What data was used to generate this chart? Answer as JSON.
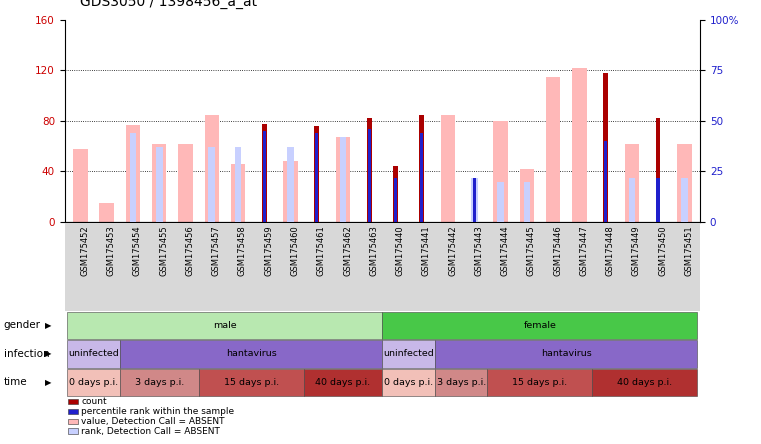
{
  "title": "GDS3050 / 1398456_a_at",
  "samples": [
    "GSM175452",
    "GSM175453",
    "GSM175454",
    "GSM175455",
    "GSM175456",
    "GSM175457",
    "GSM175458",
    "GSM175459",
    "GSM175460",
    "GSM175461",
    "GSM175462",
    "GSM175463",
    "GSM175440",
    "GSM175441",
    "GSM175442",
    "GSM175443",
    "GSM175444",
    "GSM175445",
    "GSM175446",
    "GSM175447",
    "GSM175448",
    "GSM175449",
    "GSM175450",
    "GSM175451"
  ],
  "value_absent": [
    58,
    15,
    77,
    62,
    62,
    85,
    46,
    0,
    48,
    0,
    67,
    0,
    0,
    0,
    85,
    0,
    80,
    42,
    115,
    122,
    0,
    62,
    0,
    62
  ],
  "count_present": [
    0,
    0,
    0,
    0,
    0,
    0,
    0,
    78,
    0,
    76,
    0,
    82,
    44,
    85,
    0,
    35,
    0,
    0,
    0,
    0,
    118,
    0,
    82,
    0
  ],
  "rank_absent": [
    0,
    0,
    44,
    37,
    0,
    37,
    37,
    0,
    37,
    0,
    42,
    0,
    0,
    0,
    0,
    22,
    20,
    20,
    0,
    0,
    0,
    22,
    0,
    22
  ],
  "rank_present": [
    0,
    0,
    0,
    0,
    0,
    0,
    0,
    45,
    0,
    44,
    0,
    46,
    22,
    44,
    0,
    22,
    0,
    0,
    0,
    0,
    40,
    0,
    22,
    0
  ],
  "time_groups": [
    {
      "label": "0 days p.i.",
      "start": 0,
      "end": 2,
      "color": "#f2c0b8"
    },
    {
      "label": "3 days p.i.",
      "start": 2,
      "end": 5,
      "color": "#d08888"
    },
    {
      "label": "15 days p.i.",
      "start": 5,
      "end": 9,
      "color": "#c05050"
    },
    {
      "label": "40 days p.i.",
      "start": 9,
      "end": 12,
      "color": "#b03030"
    },
    {
      "label": "0 days p.i.",
      "start": 12,
      "end": 14,
      "color": "#f2c0b8"
    },
    {
      "label": "3 days p.i.",
      "start": 14,
      "end": 16,
      "color": "#d08888"
    },
    {
      "label": "15 days p.i.",
      "start": 16,
      "end": 20,
      "color": "#c05050"
    },
    {
      "label": "40 days p.i.",
      "start": 20,
      "end": 24,
      "color": "#b03030"
    }
  ],
  "infection_groups": [
    {
      "label": "uninfected",
      "start": 0,
      "end": 2,
      "color": "#c8b8e8"
    },
    {
      "label": "hantavirus",
      "start": 2,
      "end": 12,
      "color": "#8868c8"
    },
    {
      "label": "uninfected",
      "start": 12,
      "end": 14,
      "color": "#c8b8e8"
    },
    {
      "label": "hantavirus",
      "start": 14,
      "end": 24,
      "color": "#8868c8"
    }
  ],
  "gender_groups": [
    {
      "label": "male",
      "start": 0,
      "end": 12,
      "color": "#b8e8b0"
    },
    {
      "label": "female",
      "start": 12,
      "end": 24,
      "color": "#48c848"
    }
  ],
  "color_value_absent": "#ffb8b8",
  "color_count_present": "#aa0000",
  "color_rank_absent": "#c8d0ff",
  "color_rank_present": "#2020cc",
  "axis_color_left": "#cc0000",
  "axis_color_right": "#2020cc",
  "title_fontsize": 10
}
